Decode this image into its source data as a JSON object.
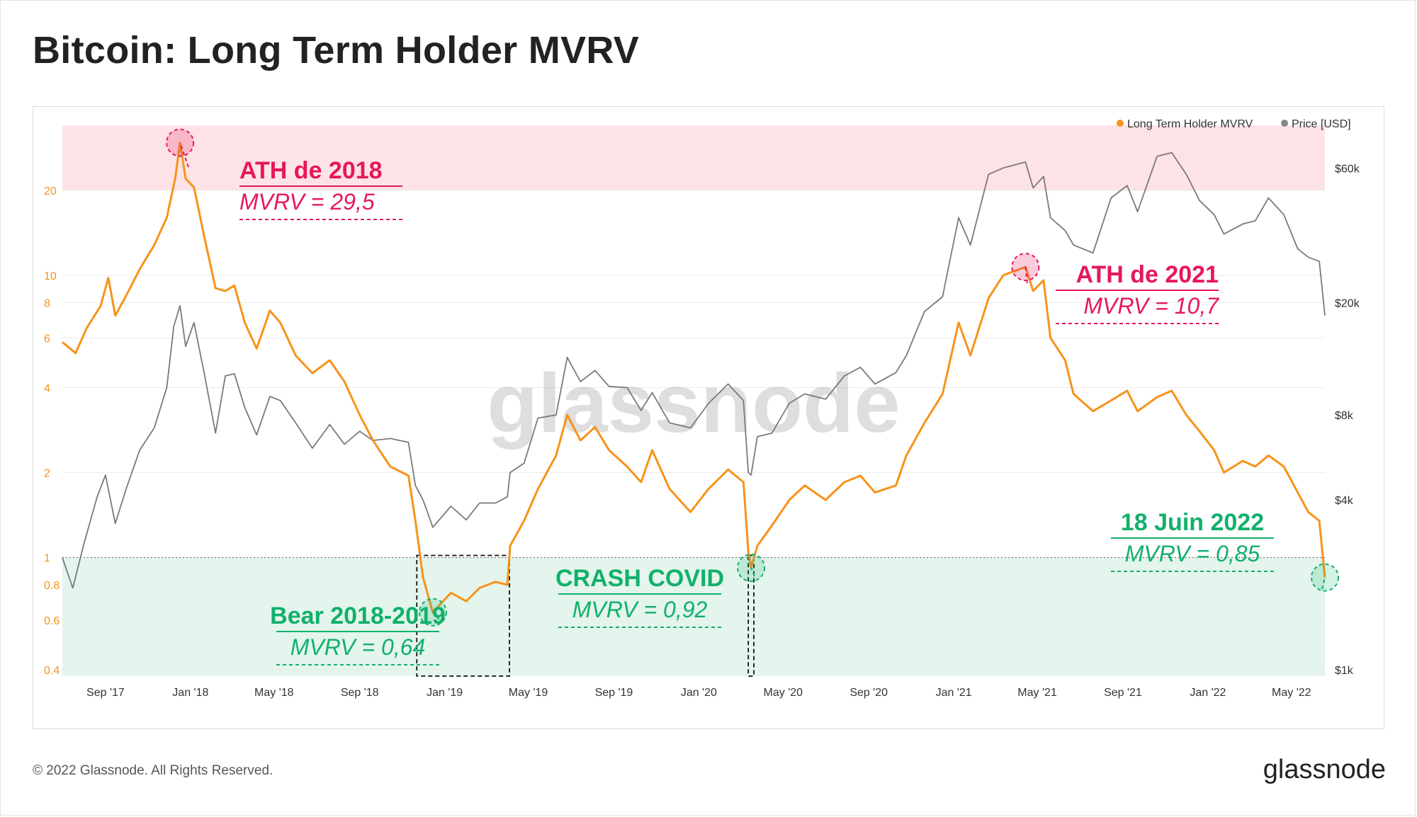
{
  "title": "Bitcoin: Long Term Holder MVRV",
  "footer": {
    "copyright": "© 2022 Glassnode. All Rights Reserved.",
    "brand": "glassnode"
  },
  "watermark": "glassnode",
  "colors": {
    "mvrv": "#f7931a",
    "price": "#7a7a7a",
    "ath": "#e6175c",
    "bear": "#12b06b",
    "ath_zone": "#fde3e6",
    "bear_zone": "#e3f5ec"
  },
  "chart_data": {
    "type": "line",
    "title": "Bitcoin: Long Term Holder MVRV",
    "x_range": [
      "2017-07-01",
      "2022-06-18"
    ],
    "x_ticks": [
      "Sep '17",
      "Jan '18",
      "May '18",
      "Sep '18",
      "Jan '19",
      "May '19",
      "Sep '19",
      "Jan '20",
      "May '20",
      "Sep '20",
      "Jan '21",
      "May '21",
      "Sep '21",
      "Jan '22",
      "May '22"
    ],
    "y_left": {
      "scale": "log",
      "range": [
        0.38,
        34
      ],
      "ticks": [
        "0.4",
        "0.6",
        "0.8",
        "1",
        "2",
        "4",
        "6",
        "8",
        "10",
        "20"
      ]
    },
    "y_right": {
      "scale": "log",
      "range": [
        950,
        85000
      ],
      "ticks": [
        "$1k",
        "$4k",
        "$8k",
        "$20k",
        "$60k"
      ]
    },
    "legend": {
      "position": "top-right",
      "items": [
        "Long Term Holder MVRV",
        "Price [USD]"
      ]
    },
    "zones": {
      "overvalued_from": 20,
      "undervalued_below": 1
    },
    "series": [
      {
        "name": "Long Term Holder MVRV",
        "axis": "left",
        "points": [
          [
            "2017-07-01",
            5.8
          ],
          [
            "2017-07-20",
            5.3
          ],
          [
            "2017-08-05",
            6.5
          ],
          [
            "2017-08-25",
            7.8
          ],
          [
            "2017-09-05",
            9.8
          ],
          [
            "2017-09-15",
            7.2
          ],
          [
            "2017-10-01",
            8.5
          ],
          [
            "2017-10-20",
            10.5
          ],
          [
            "2017-11-10",
            12.8
          ],
          [
            "2017-11-28",
            16.0
          ],
          [
            "2017-12-10",
            22.0
          ],
          [
            "2017-12-17",
            29.5
          ],
          [
            "2017-12-25",
            22.0
          ],
          [
            "2018-01-06",
            20.5
          ],
          [
            "2018-01-20",
            14.0
          ],
          [
            "2018-02-06",
            9.0
          ],
          [
            "2018-02-20",
            8.8
          ],
          [
            "2018-03-05",
            9.2
          ],
          [
            "2018-03-20",
            6.8
          ],
          [
            "2018-04-06",
            5.5
          ],
          [
            "2018-04-25",
            7.5
          ],
          [
            "2018-05-10",
            6.8
          ],
          [
            "2018-06-01",
            5.2
          ],
          [
            "2018-06-25",
            4.5
          ],
          [
            "2018-07-20",
            5.0
          ],
          [
            "2018-08-10",
            4.2
          ],
          [
            "2018-09-01",
            3.2
          ],
          [
            "2018-09-20",
            2.6
          ],
          [
            "2018-10-15",
            2.1
          ],
          [
            "2018-11-10",
            1.95
          ],
          [
            "2018-11-20",
            1.35
          ],
          [
            "2018-12-01",
            0.85
          ],
          [
            "2018-12-15",
            0.64
          ],
          [
            "2019-01-10",
            0.75
          ],
          [
            "2019-02-01",
            0.7
          ],
          [
            "2019-02-20",
            0.78
          ],
          [
            "2019-03-15",
            0.82
          ],
          [
            "2019-04-01",
            0.8
          ],
          [
            "2019-04-05",
            1.1
          ],
          [
            "2019-04-25",
            1.35
          ],
          [
            "2019-05-15",
            1.75
          ],
          [
            "2019-06-10",
            2.3
          ],
          [
            "2019-06-26",
            3.2
          ],
          [
            "2019-07-15",
            2.6
          ],
          [
            "2019-08-05",
            2.9
          ],
          [
            "2019-08-25",
            2.4
          ],
          [
            "2019-09-20",
            2.1
          ],
          [
            "2019-10-10",
            1.85
          ],
          [
            "2019-10-26",
            2.4
          ],
          [
            "2019-11-20",
            1.75
          ],
          [
            "2019-12-20",
            1.45
          ],
          [
            "2020-01-15",
            1.75
          ],
          [
            "2020-02-12",
            2.05
          ],
          [
            "2020-03-05",
            1.85
          ],
          [
            "2020-03-12",
            1.05
          ],
          [
            "2020-03-16",
            0.92
          ],
          [
            "2020-03-25",
            1.1
          ],
          [
            "2020-04-15",
            1.3
          ],
          [
            "2020-05-10",
            1.6
          ],
          [
            "2020-06-01",
            1.8
          ],
          [
            "2020-07-01",
            1.6
          ],
          [
            "2020-07-28",
            1.85
          ],
          [
            "2020-08-20",
            1.95
          ],
          [
            "2020-09-10",
            1.7
          ],
          [
            "2020-10-10",
            1.8
          ],
          [
            "2020-10-25",
            2.3
          ],
          [
            "2020-11-20",
            3.0
          ],
          [
            "2020-12-16",
            3.8
          ],
          [
            "2021-01-08",
            6.8
          ],
          [
            "2021-01-25",
            5.2
          ],
          [
            "2021-02-20",
            8.3
          ],
          [
            "2021-03-13",
            10.0
          ],
          [
            "2021-04-14",
            10.7
          ],
          [
            "2021-04-25",
            8.8
          ],
          [
            "2021-05-10",
            9.6
          ],
          [
            "2021-05-20",
            6.0
          ],
          [
            "2021-06-10",
            5.0
          ],
          [
            "2021-06-22",
            3.8
          ],
          [
            "2021-07-20",
            3.3
          ],
          [
            "2021-08-15",
            3.6
          ],
          [
            "2021-09-07",
            3.9
          ],
          [
            "2021-09-22",
            3.3
          ],
          [
            "2021-10-20",
            3.7
          ],
          [
            "2021-11-10",
            3.9
          ],
          [
            "2021-12-01",
            3.2
          ],
          [
            "2021-12-20",
            2.8
          ],
          [
            "2022-01-10",
            2.4
          ],
          [
            "2022-01-24",
            2.0
          ],
          [
            "2022-02-20",
            2.2
          ],
          [
            "2022-03-10",
            2.1
          ],
          [
            "2022-03-29",
            2.3
          ],
          [
            "2022-04-20",
            2.1
          ],
          [
            "2022-05-10",
            1.7
          ],
          [
            "2022-05-25",
            1.45
          ],
          [
            "2022-06-10",
            1.35
          ],
          [
            "2022-06-18",
            0.85
          ]
        ]
      },
      {
        "name": "Price [USD]",
        "axis": "right",
        "points": [
          [
            "2017-07-01",
            2500
          ],
          [
            "2017-07-16",
            1950
          ],
          [
            "2017-08-01",
            2800
          ],
          [
            "2017-08-20",
            4100
          ],
          [
            "2017-09-01",
            4900
          ],
          [
            "2017-09-15",
            3300
          ],
          [
            "2017-10-01",
            4400
          ],
          [
            "2017-10-20",
            6000
          ],
          [
            "2017-11-10",
            7200
          ],
          [
            "2017-11-28",
            10000
          ],
          [
            "2017-12-08",
            16500
          ],
          [
            "2017-12-17",
            19500
          ],
          [
            "2017-12-25",
            14000
          ],
          [
            "2018-01-06",
            17000
          ],
          [
            "2018-01-20",
            11500
          ],
          [
            "2018-02-06",
            6900
          ],
          [
            "2018-02-20",
            11000
          ],
          [
            "2018-03-05",
            11200
          ],
          [
            "2018-03-20",
            8500
          ],
          [
            "2018-04-06",
            6800
          ],
          [
            "2018-04-25",
            9300
          ],
          [
            "2018-05-10",
            9000
          ],
          [
            "2018-06-01",
            7500
          ],
          [
            "2018-06-25",
            6100
          ],
          [
            "2018-07-20",
            7400
          ],
          [
            "2018-08-10",
            6300
          ],
          [
            "2018-09-01",
            7000
          ],
          [
            "2018-09-20",
            6500
          ],
          [
            "2018-10-15",
            6600
          ],
          [
            "2018-11-10",
            6400
          ],
          [
            "2018-11-20",
            4500
          ],
          [
            "2018-12-01",
            4000
          ],
          [
            "2018-12-15",
            3200
          ],
          [
            "2019-01-10",
            3800
          ],
          [
            "2019-02-01",
            3400
          ],
          [
            "2019-02-20",
            3900
          ],
          [
            "2019-03-15",
            3900
          ],
          [
            "2019-04-01",
            4100
          ],
          [
            "2019-04-05",
            5000
          ],
          [
            "2019-04-25",
            5400
          ],
          [
            "2019-05-15",
            7800
          ],
          [
            "2019-06-10",
            8000
          ],
          [
            "2019-06-26",
            12800
          ],
          [
            "2019-07-15",
            10500
          ],
          [
            "2019-08-05",
            11500
          ],
          [
            "2019-08-25",
            10100
          ],
          [
            "2019-09-20",
            10000
          ],
          [
            "2019-10-10",
            8300
          ],
          [
            "2019-10-26",
            9600
          ],
          [
            "2019-11-20",
            7500
          ],
          [
            "2019-12-20",
            7200
          ],
          [
            "2020-01-15",
            8800
          ],
          [
            "2020-02-12",
            10300
          ],
          [
            "2020-03-05",
            9000
          ],
          [
            "2020-03-12",
            5000
          ],
          [
            "2020-03-16",
            4900
          ],
          [
            "2020-03-25",
            6700
          ],
          [
            "2020-04-15",
            6900
          ],
          [
            "2020-05-10",
            8800
          ],
          [
            "2020-06-01",
            9500
          ],
          [
            "2020-07-01",
            9100
          ],
          [
            "2020-07-28",
            11000
          ],
          [
            "2020-08-20",
            11800
          ],
          [
            "2020-09-10",
            10300
          ],
          [
            "2020-10-10",
            11300
          ],
          [
            "2020-10-25",
            13000
          ],
          [
            "2020-11-20",
            18600
          ],
          [
            "2020-12-16",
            21000
          ],
          [
            "2021-01-08",
            40000
          ],
          [
            "2021-01-25",
            32000
          ],
          [
            "2021-02-20",
            57000
          ],
          [
            "2021-03-13",
            60000
          ],
          [
            "2021-04-14",
            63000
          ],
          [
            "2021-04-25",
            51000
          ],
          [
            "2021-05-10",
            56000
          ],
          [
            "2021-05-20",
            40000
          ],
          [
            "2021-06-10",
            36000
          ],
          [
            "2021-06-22",
            32000
          ],
          [
            "2021-07-20",
            30000
          ],
          [
            "2021-08-15",
            47000
          ],
          [
            "2021-09-07",
            52000
          ],
          [
            "2021-09-22",
            42000
          ],
          [
            "2021-10-20",
            66000
          ],
          [
            "2021-11-10",
            68000
          ],
          [
            "2021-12-01",
            57000
          ],
          [
            "2021-12-20",
            46000
          ],
          [
            "2022-01-10",
            41000
          ],
          [
            "2022-01-24",
            35000
          ],
          [
            "2022-02-20",
            38000
          ],
          [
            "2022-03-10",
            39000
          ],
          [
            "2022-03-29",
            47000
          ],
          [
            "2022-04-20",
            41000
          ],
          [
            "2022-05-10",
            31000
          ],
          [
            "2022-05-25",
            29000
          ],
          [
            "2022-06-10",
            28000
          ],
          [
            "2022-06-18",
            18000
          ]
        ]
      }
    ],
    "annotations": [
      {
        "id": "ath2018",
        "kind": "ath",
        "date": "2017-12-17",
        "value": 29.5,
        "label": "ATH de 2018",
        "sublabel": "MVRV = 29,5"
      },
      {
        "id": "ath2021",
        "kind": "ath",
        "date": "2021-04-14",
        "value": 10.7,
        "label": "ATH de 2021",
        "sublabel": "MVRV = 10,7"
      },
      {
        "id": "bear",
        "kind": "bear",
        "date": "2018-12-15",
        "value": 0.64,
        "label": "Bear 2018-2019",
        "sublabel": "MVRV = 0,64",
        "box": [
          "2018-11-22",
          "2019-04-04"
        ]
      },
      {
        "id": "covid",
        "kind": "bear",
        "date": "2020-03-16",
        "value": 0.92,
        "label": "CRASH COVID",
        "sublabel": "MVRV = 0,92",
        "box": [
          "2020-03-12",
          "2020-03-20"
        ]
      },
      {
        "id": "june",
        "kind": "bear",
        "date": "2022-06-18",
        "value": 0.85,
        "label": "18 Juin 2022",
        "sublabel": "MVRV = 0,85"
      }
    ]
  }
}
